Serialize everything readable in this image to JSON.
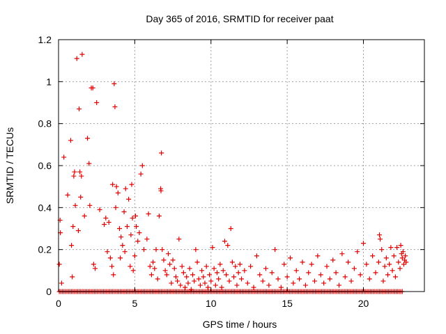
{
  "colors": {
    "series": "#e00000",
    "grid": "#a0a0a0",
    "axis": "#000000"
  },
  "chart_data": {
    "type": "scatter",
    "marker": "plus",
    "title": "Day 365 of 2016, SRMTID for receiver paat",
    "xlabel": "GPS time / hours",
    "ylabel": "SRMTID / TECUs",
    "xlim": [
      0,
      24
    ],
    "ylim": [
      0,
      1.2
    ],
    "xticks": [
      0,
      5,
      10,
      15,
      20
    ],
    "yticks": [
      0,
      0.2,
      0.4,
      0.6,
      0.8,
      1,
      1.2
    ],
    "xtick_labels": [
      "0",
      "5",
      "10",
      "15",
      "20"
    ],
    "ytick_labels": [
      "0",
      "0.2",
      "0.4",
      "0.6",
      "0.8",
      "1",
      "1.2"
    ],
    "grid": true,
    "series": [
      {
        "name": "SRMTID",
        "baseline_points": {
          "y": 0,
          "x_start": 0.05,
          "x_end": 22.6,
          "step": 0.1
        },
        "points": [
          [
            0.05,
            0.13
          ],
          [
            0.1,
            0.34
          ],
          [
            0.12,
            0.28
          ],
          [
            0.2,
            0.04
          ],
          [
            0.35,
            0.64
          ],
          [
            0.6,
            0.46
          ],
          [
            0.8,
            0.72
          ],
          [
            0.85,
            0.22
          ],
          [
            0.9,
            0.07
          ],
          [
            0.95,
            0.31
          ],
          [
            1.0,
            0.55
          ],
          [
            1.05,
            0.57
          ],
          [
            1.1,
            0.41
          ],
          [
            1.2,
            1.11
          ],
          [
            1.3,
            0.29
          ],
          [
            1.35,
            0.87
          ],
          [
            1.4,
            0.57
          ],
          [
            1.45,
            0.45
          ],
          [
            1.5,
            0.55
          ],
          [
            1.55,
            1.13
          ],
          [
            1.7,
            0.36
          ],
          [
            1.9,
            0.73
          ],
          [
            2.0,
            0.61
          ],
          [
            2.05,
            0.41
          ],
          [
            2.15,
            0.97
          ],
          [
            2.25,
            0.97
          ],
          [
            2.3,
            0.13
          ],
          [
            2.4,
            0.11
          ],
          [
            2.5,
            0.9
          ],
          [
            2.7,
            0.39
          ],
          [
            3.0,
            0.32
          ],
          [
            3.1,
            0.35
          ],
          [
            3.2,
            0.19
          ],
          [
            3.3,
            0.33
          ],
          [
            3.4,
            0.16
          ],
          [
            3.5,
            0.12
          ],
          [
            3.55,
            0.51
          ],
          [
            3.6,
            0.08
          ],
          [
            3.65,
            0.99
          ],
          [
            3.7,
            0.88
          ],
          [
            3.75,
            0.4
          ],
          [
            3.8,
            0.5
          ],
          [
            3.9,
            0.47
          ],
          [
            4.0,
            0.3
          ],
          [
            4.05,
            0.16
          ],
          [
            4.1,
            0.26
          ],
          [
            4.2,
            0.22
          ],
          [
            4.3,
            0.38
          ],
          [
            4.35,
            0.19
          ],
          [
            4.4,
            0.49
          ],
          [
            4.5,
            0.31
          ],
          [
            4.6,
            0.44
          ],
          [
            4.7,
            0.12
          ],
          [
            4.75,
            0.27
          ],
          [
            4.8,
            0.51
          ],
          [
            4.85,
            0.35
          ],
          [
            4.9,
            0.1
          ],
          [
            5.0,
            0.17
          ],
          [
            5.05,
            0.36
          ],
          [
            5.1,
            0.31
          ],
          [
            5.2,
            0.24
          ],
          [
            5.3,
            0.28
          ],
          [
            5.4,
            0.56
          ],
          [
            5.5,
            0.6
          ],
          [
            5.6,
            0.2
          ],
          [
            5.8,
            0.25
          ],
          [
            5.9,
            0.37
          ],
          [
            6.0,
            0.12
          ],
          [
            6.1,
            0.08
          ],
          [
            6.2,
            0.14
          ],
          [
            6.3,
            0.11
          ],
          [
            6.4,
            0.2
          ],
          [
            6.5,
            0.06
          ],
          [
            6.6,
            0.36
          ],
          [
            6.7,
            0.49
          ],
          [
            6.72,
            0.48
          ],
          [
            6.75,
            0.66
          ],
          [
            6.8,
            0.2
          ],
          [
            6.9,
            0.15
          ],
          [
            7.0,
            0.1
          ],
          [
            7.1,
            0.08
          ],
          [
            7.2,
            0.18
          ],
          [
            7.3,
            0.13
          ],
          [
            7.4,
            0.04
          ],
          [
            7.5,
            0.15
          ],
          [
            7.6,
            0.11
          ],
          [
            7.7,
            0.07
          ],
          [
            7.8,
            0.05
          ],
          [
            7.9,
            0.25
          ],
          [
            8.0,
            0.03
          ],
          [
            8.1,
            0.12
          ],
          [
            8.2,
            0.09
          ],
          [
            8.3,
            0.02
          ],
          [
            8.4,
            0.07
          ],
          [
            8.5,
            0.04
          ],
          [
            8.6,
            0.11
          ],
          [
            8.7,
            0.01
          ],
          [
            8.8,
            0.08
          ],
          [
            8.9,
            0.05
          ],
          [
            9.0,
            0.2
          ],
          [
            9.1,
            0.14
          ],
          [
            9.2,
            0.06
          ],
          [
            9.3,
            0.03
          ],
          [
            9.4,
            0.1
          ],
          [
            9.5,
            0.07
          ],
          [
            9.6,
            0.04
          ],
          [
            9.7,
            0.12
          ],
          [
            9.8,
            0.02
          ],
          [
            9.9,
            0.08
          ],
          [
            10.0,
            0.05
          ],
          [
            10.1,
            0.21
          ],
          [
            10.2,
            0.11
          ],
          [
            10.3,
            0.03
          ],
          [
            10.4,
            0.09
          ],
          [
            10.5,
            0.06
          ],
          [
            10.6,
            0.13
          ],
          [
            10.7,
            0.02
          ],
          [
            10.8,
            0.1
          ],
          [
            10.9,
            0.24
          ],
          [
            11.0,
            0.08
          ],
          [
            11.1,
            0.22
          ],
          [
            11.2,
            0.05
          ],
          [
            11.3,
            0.3
          ],
          [
            11.4,
            0.14
          ],
          [
            11.5,
            0.07
          ],
          [
            11.6,
            0.12
          ],
          [
            11.7,
            0.03
          ],
          [
            11.8,
            0.09
          ],
          [
            11.9,
            0.13
          ],
          [
            12.0,
            0.06
          ],
          [
            12.2,
            0.1
          ],
          [
            12.4,
            0.04
          ],
          [
            12.6,
            0.12
          ],
          [
            12.8,
            0.02
          ],
          [
            13.0,
            0.17
          ],
          [
            13.2,
            0.08
          ],
          [
            13.4,
            0.05
          ],
          [
            13.6,
            0.11
          ],
          [
            13.8,
            0.03
          ],
          [
            14.0,
            0.09
          ],
          [
            14.2,
            0.2
          ],
          [
            14.4,
            0.06
          ],
          [
            14.6,
            0.02
          ],
          [
            14.8,
            0.13
          ],
          [
            15.0,
            0.07
          ],
          [
            15.2,
            0.16
          ],
          [
            15.4,
            0.04
          ],
          [
            15.6,
            0.1
          ],
          [
            15.8,
            0.06
          ],
          [
            16.0,
            0.14
          ],
          [
            16.2,
            0.03
          ],
          [
            16.4,
            0.09
          ],
          [
            16.6,
            0.13
          ],
          [
            16.8,
            0.05
          ],
          [
            17.0,
            0.17
          ],
          [
            17.2,
            0.08
          ],
          [
            17.4,
            0.04
          ],
          [
            17.6,
            0.12
          ],
          [
            17.8,
            0.06
          ],
          [
            18.0,
            0.15
          ],
          [
            18.2,
            0.09
          ],
          [
            18.4,
            0.03
          ],
          [
            18.6,
            0.18
          ],
          [
            18.8,
            0.07
          ],
          [
            19.0,
            0.14
          ],
          [
            19.2,
            0.05
          ],
          [
            19.4,
            0.11
          ],
          [
            19.6,
            0.19
          ],
          [
            19.8,
            0.08
          ],
          [
            20.0,
            0.23
          ],
          [
            20.2,
            0.13
          ],
          [
            20.4,
            0.06
          ],
          [
            20.6,
            0.17
          ],
          [
            20.8,
            0.09
          ],
          [
            21.0,
            0.14
          ],
          [
            21.05,
            0.27
          ],
          [
            21.1,
            0.25
          ],
          [
            21.2,
            0.2
          ],
          [
            21.3,
            0.05
          ],
          [
            21.4,
            0.12
          ],
          [
            21.5,
            0.16
          ],
          [
            21.6,
            0.08
          ],
          [
            21.7,
            0.13
          ],
          [
            21.8,
            0.21
          ],
          [
            21.9,
            0.1
          ],
          [
            22.0,
            0.17
          ],
          [
            22.1,
            0.07
          ],
          [
            22.2,
            0.21
          ],
          [
            22.3,
            0.14
          ],
          [
            22.4,
            0.11
          ],
          [
            22.45,
            0.22
          ],
          [
            22.5,
            0.18
          ],
          [
            22.55,
            0.16
          ],
          [
            22.6,
            0.19
          ],
          [
            22.65,
            0.13
          ],
          [
            22.7,
            0.15
          ],
          [
            22.75,
            0.17
          ],
          [
            22.8,
            0.14
          ]
        ]
      }
    ]
  }
}
